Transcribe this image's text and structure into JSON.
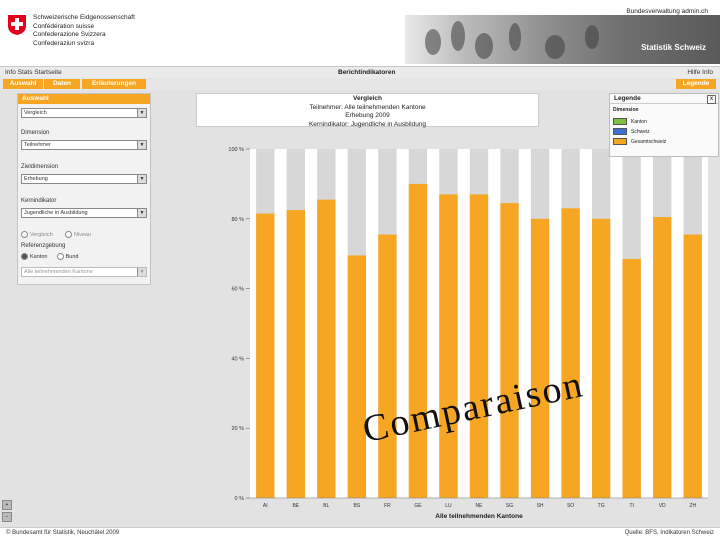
{
  "header": {
    "federal_lines": [
      "Schweizerische Eidgenossenschaft",
      "Confédération suisse",
      "Confederazione Svizzera",
      "Confederaziun svizra"
    ],
    "admin_text": "Bundesverwaltung admin.ch",
    "banner_title": "Statistik Schweiz"
  },
  "topnav": {
    "left": "Info Stats Startseite",
    "center": "Berichtindikatoren",
    "right": "Hilfe Info"
  },
  "tabs": {
    "auswahl": "Auswahl",
    "daten": "Daten",
    "erlaeuterungen": "Erläuterungen",
    "legende": "Legende"
  },
  "panel": {
    "title": "Auswahl",
    "fields": [
      {
        "label": "",
        "value": "Vergleich"
      },
      {
        "label": "Dimension",
        "value": "Teilnehmer"
      },
      {
        "label": "Zieldimension",
        "value": "Erhebung"
      },
      {
        "label": "Kernindikator",
        "value": "Jugendliche in Ausbildung"
      }
    ],
    "radio_top": [
      "Vergleich",
      "Niveau"
    ],
    "reference_label": "Referenzgebung",
    "radio_bottom": [
      "Kanton",
      "Bund"
    ],
    "reference_select": "Alle teilnehmenden Kantone"
  },
  "chart_title": {
    "line1": "Vergleich",
    "line2": "Teilnehmer: Alle teilnehmenden Kantone",
    "line3": "Erhebung 2009",
    "line4": "Kernindikator: Jugendliche in Ausbildung"
  },
  "legend": {
    "title": "Legende",
    "close": "x",
    "subtitle": "Dimension",
    "items": [
      {
        "label": "Kanton",
        "color": "#7cc242"
      },
      {
        "label": "Schweiz",
        "color": "#3f6fd1"
      },
      {
        "label": "Gesamtschweiz",
        "color": "#f6a623"
      }
    ]
  },
  "chart_data": {
    "type": "bar",
    "categories": [
      "AI",
      "BE",
      "BL",
      "BS",
      "FR",
      "GE",
      "LU",
      "NE",
      "SG",
      "SH",
      "SO",
      "TG",
      "TI",
      "VD",
      "ZH"
    ],
    "values": [
      81.5,
      82.5,
      85.5,
      69.5,
      75.5,
      90,
      87,
      87,
      84.5,
      80,
      83,
      80,
      68.5,
      80.5,
      75.5
    ],
    "ylim": [
      0,
      100
    ],
    "yticks": [
      "0 %",
      "20 %",
      "40 %",
      "60 %",
      "80 %",
      "100 %"
    ],
    "xlabel": "Alle teilnehmenden Kantone",
    "bar_color": "#f6a623",
    "bg_bar_color": "#d7d7d7"
  },
  "watermark": "Comparaison",
  "footer": {
    "left": "© Bundesamt für Statistik, Neuchâtel 2009",
    "right": "Quelle: BFS, Indikatoren Schweiz"
  }
}
